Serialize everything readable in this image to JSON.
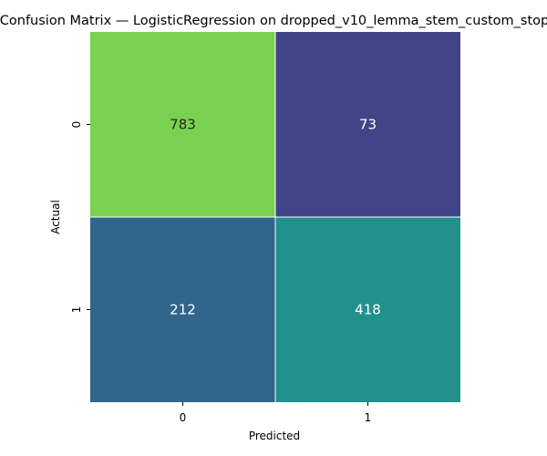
{
  "chart_data": {
    "type": "heatmap",
    "title": "Confusion Matrix — LogisticRegression on dropped_v10_lemma_stem_custom_stop",
    "xlabel": "Predicted",
    "ylabel": "Actual",
    "x_categories": [
      "0",
      "1"
    ],
    "y_categories": [
      "0",
      "1"
    ],
    "values": [
      [
        783,
        73
      ],
      [
        212,
        418
      ]
    ],
    "colormap": "viridis",
    "colorbar": false,
    "cell_colors": [
      [
        "#7ad151",
        "#414487"
      ],
      [
        "#31658c",
        "#21918c"
      ]
    ],
    "cell_text_colors": [
      [
        "#262626",
        "#ffffff"
      ],
      [
        "#ffffff",
        "#ffffff"
      ]
    ]
  }
}
